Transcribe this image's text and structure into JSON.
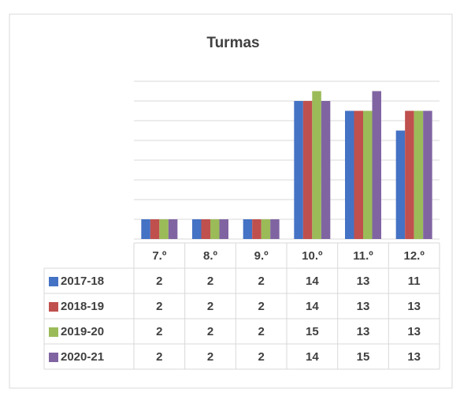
{
  "chart_data": {
    "type": "bar",
    "title": "Turmas",
    "categories": [
      "7.º",
      "8.º",
      "9.º",
      "10.º",
      "11.º",
      "12.º"
    ],
    "series": [
      {
        "name": "2017-18",
        "color": "#4472c4",
        "values": [
          2,
          2,
          2,
          14,
          13,
          11
        ]
      },
      {
        "name": "2018-19",
        "color": "#c0504d",
        "values": [
          2,
          2,
          2,
          14,
          13,
          13
        ]
      },
      {
        "name": "2019-20",
        "color": "#9bbb59",
        "values": [
          2,
          2,
          2,
          15,
          13,
          13
        ]
      },
      {
        "name": "2020-21",
        "color": "#8064a2",
        "values": [
          2,
          2,
          2,
          14,
          15,
          13
        ]
      }
    ],
    "ylim": [
      0,
      16
    ],
    "yticks": [
      0,
      2,
      4,
      6,
      8,
      10,
      12,
      14,
      16
    ],
    "grid": true
  }
}
